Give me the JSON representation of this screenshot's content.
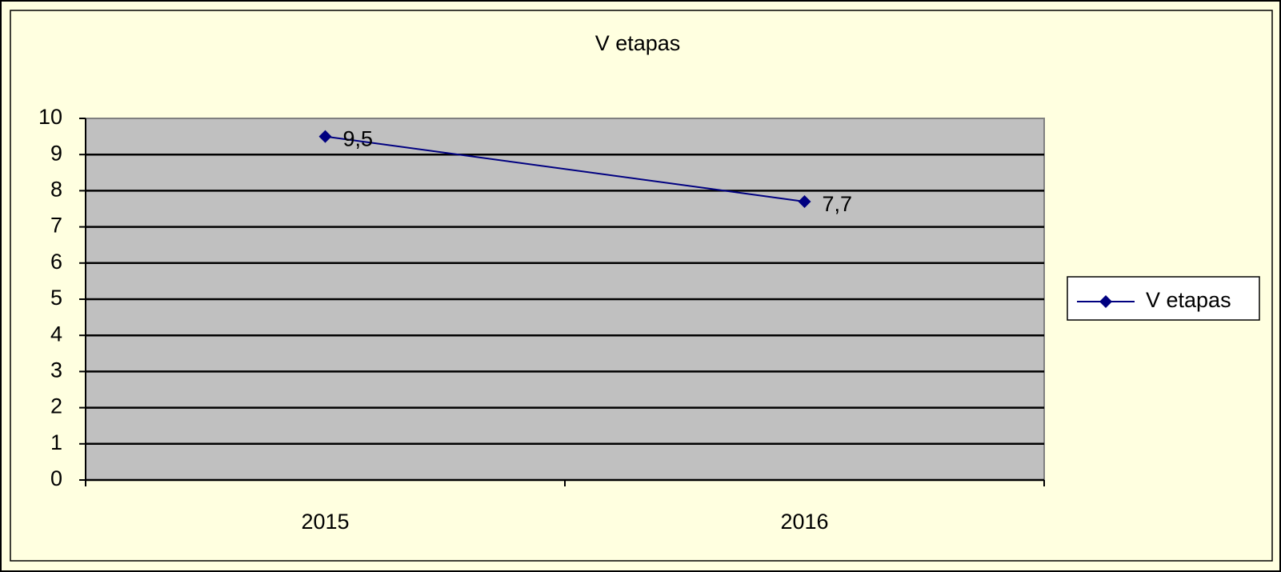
{
  "chart_data": {
    "type": "line",
    "title": "V etapas",
    "categories": [
      "2015",
      "2016"
    ],
    "series": [
      {
        "name": "V etapas",
        "color": "#000080",
        "values": [
          9.5,
          7.7
        ],
        "value_labels": [
          "9,5",
          "7,7"
        ]
      }
    ],
    "ylim": [
      0,
      10
    ],
    "yticks": [
      0,
      1,
      2,
      3,
      4,
      5,
      6,
      7,
      8,
      9,
      10
    ],
    "grid": true,
    "legend": "right"
  }
}
